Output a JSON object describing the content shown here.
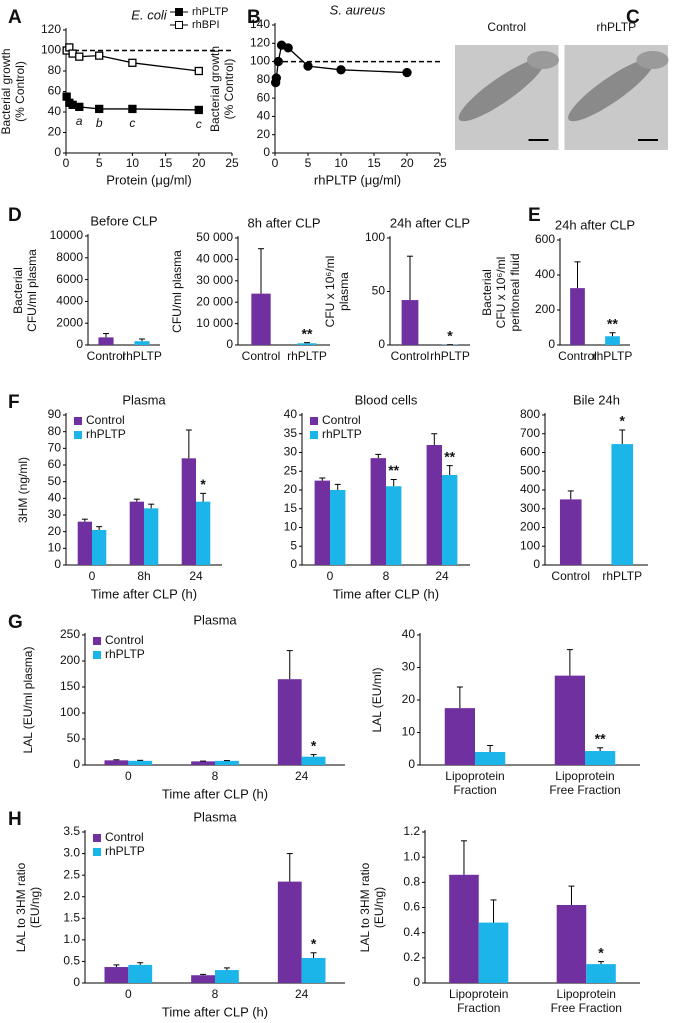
{
  "chart_data": [
    {
      "type": "line",
      "panel": "A",
      "title": "E. coli",
      "xlabel": "Protein (μg/ml)",
      "ylabel": [
        "Bacterial growth",
        "(% Control)"
      ],
      "xlim": [
        0,
        25
      ],
      "xticks": [
        0,
        5,
        10,
        15,
        20,
        25
      ],
      "ylim": [
        0,
        120
      ],
      "yticks": [
        0,
        20,
        40,
        60,
        80,
        100,
        120
      ],
      "reference_line": 100,
      "legend": "upper right",
      "series": [
        {
          "name": "rhPLTP",
          "color": "#000000",
          "marker": "filled-square",
          "x": [
            0.1,
            0.5,
            1,
            2,
            5,
            10,
            20
          ],
          "values": [
            55,
            49,
            47,
            45,
            43,
            43,
            42
          ],
          "point_labels": [
            null,
            null,
            null,
            "a",
            "b",
            "c",
            "c"
          ]
        },
        {
          "name": "rhBPI",
          "color": "#000000",
          "marker": "open-square",
          "x": [
            0.1,
            0.5,
            1,
            2,
            5,
            10,
            20
          ],
          "values": [
            100,
            103,
            97,
            94,
            95,
            88,
            80
          ]
        }
      ]
    },
    {
      "type": "line",
      "panel": "B",
      "title": "S. aureus",
      "xlabel": "rhPLTP (μg/ml)",
      "ylabel": [
        "Bacterial growth",
        "(% Control)"
      ],
      "xlim": [
        0,
        25
      ],
      "xticks": [
        0,
        5,
        10,
        15,
        20,
        25
      ],
      "ylim": [
        0,
        140
      ],
      "yticks": [
        0,
        20,
        40,
        60,
        80,
        100,
        120,
        140
      ],
      "reference_line": 100,
      "series": [
        {
          "color": "#000000",
          "marker": "filled-circle",
          "x": [
            0.1,
            0.2,
            0.5,
            1,
            2,
            5,
            10,
            20
          ],
          "values": [
            77,
            82,
            100,
            118,
            115,
            95,
            91,
            88
          ]
        }
      ]
    },
    {
      "type": "image",
      "panel": "C",
      "labels": [
        "Control",
        "rhPLTP"
      ]
    },
    {
      "type": "bar",
      "panel": "D",
      "title": "Before CLP",
      "ylabel": [
        "Bacterial",
        "CFU/ml plasma"
      ],
      "categories": [
        "Control",
        "rhPLTP"
      ],
      "values": [
        700,
        350
      ],
      "errors": [
        350,
        200
      ],
      "colors": [
        "#7030a0",
        "#1cb5ea"
      ],
      "ylim": [
        0,
        10000
      ],
      "yticks": [
        0,
        2000,
        4000,
        6000,
        8000,
        10000
      ]
    },
    {
      "type": "bar",
      "title": "8h after CLP",
      "ylabel": "CFU/ml plasma",
      "categories": [
        "Control",
        "rhPLTP"
      ],
      "values": [
        24000,
        800
      ],
      "errors": [
        21000,
        300
      ],
      "marks": [
        null,
        "**"
      ],
      "colors": [
        "#7030a0",
        "#1cb5ea"
      ],
      "ylim": [
        0,
        50000
      ],
      "yticks": [
        0,
        {
          "value": 10000,
          "label": "10 000"
        },
        {
          "value": 20000,
          "label": "20 000"
        },
        {
          "value": 30000,
          "label": "30 000"
        },
        {
          "value": 40000,
          "label": "40 000"
        },
        {
          "value": 50000,
          "label": "50 000"
        }
      ]
    },
    {
      "type": "bar",
      "title": "24h after CLP",
      "ylabel": [
        "CFU x 10⁶/ml",
        "plasma"
      ],
      "categories": [
        "Control",
        "rhPLTP"
      ],
      "values": [
        42,
        0.3
      ],
      "errors": [
        41,
        0
      ],
      "marks": [
        null,
        "*"
      ],
      "colors": [
        "#7030a0",
        "#1cb5ea"
      ],
      "ylim": [
        0,
        100
      ],
      "yticks": [
        0,
        50,
        100
      ]
    },
    {
      "type": "bar",
      "panel": "E",
      "title": "24h after CLP",
      "ylabel": [
        "Bacterial",
        "CFU x 10⁶/ml",
        "peritoneal fluid"
      ],
      "categories": [
        "Control",
        "rhPLTP"
      ],
      "values": [
        325,
        50
      ],
      "errors": [
        150,
        20
      ],
      "marks": [
        null,
        "**"
      ],
      "colors": [
        "#7030a0",
        "#1cb5ea"
      ],
      "ylim": [
        0,
        600
      ],
      "yticks": [
        0,
        200,
        400,
        600
      ]
    },
    {
      "type": "grouped-bar",
      "panel": "F",
      "title": "Plasma",
      "xlabel": "Time after CLP (h)",
      "ylabel": "3HM (ng/ml)",
      "legend": "upper left",
      "categories": [
        "0",
        "8h",
        "24"
      ],
      "ylim": [
        0,
        90
      ],
      "yticks": [
        0,
        10,
        20,
        30,
        40,
        50,
        60,
        70,
        80,
        90
      ],
      "series": [
        {
          "name": "Control",
          "color": "#7030a0",
          "values": [
            26,
            38,
            64
          ],
          "errors": [
            1.5,
            1.5,
            17
          ]
        },
        {
          "name": "rhPLTP",
          "color": "#1cb5ea",
          "values": [
            21,
            34,
            38
          ],
          "errors": [
            2,
            2.5,
            5
          ],
          "marks": [
            null,
            null,
            "*"
          ]
        }
      ]
    },
    {
      "type": "grouped-bar",
      "title": "Blood cells",
      "xlabel": "Time after CLP (h)",
      "legend": "upper left",
      "categories": [
        "0",
        "8",
        "24"
      ],
      "ylim": [
        0,
        40
      ],
      "yticks": [
        0,
        5,
        10,
        15,
        20,
        25,
        30,
        35,
        40
      ],
      "series": [
        {
          "name": "Control",
          "color": "#7030a0",
          "values": [
            22.5,
            28.5,
            32
          ],
          "errors": [
            0.7,
            1,
            3
          ]
        },
        {
          "name": "rhPLTP",
          "color": "#1cb5ea",
          "values": [
            20,
            21,
            24
          ],
          "errors": [
            1.5,
            1.8,
            2.5
          ],
          "marks": [
            null,
            "**",
            "**"
          ]
        }
      ]
    },
    {
      "type": "bar",
      "title": "Bile 24h",
      "categories": [
        "Control",
        "rhPLTP"
      ],
      "values": [
        350,
        645
      ],
      "errors": [
        45,
        75
      ],
      "marks": [
        null,
        "*"
      ],
      "colors": [
        "#7030a0",
        "#1cb5ea"
      ],
      "ylim": [
        0,
        800
      ],
      "yticks": [
        0,
        100,
        200,
        300,
        400,
        500,
        600,
        700,
        800
      ]
    },
    {
      "type": "grouped-bar",
      "panel": "G",
      "title": "Plasma",
      "xlabel": "Time after CLP (h)",
      "ylabel": "LAL (EU/ml plasma)",
      "legend": "upper left",
      "categories": [
        "0",
        "8",
        "24"
      ],
      "ylim": [
        0,
        250
      ],
      "yticks": [
        0,
        50,
        100,
        150,
        200,
        250
      ],
      "series": [
        {
          "name": "Control",
          "color": "#7030a0",
          "values": [
            9,
            7,
            165
          ],
          "errors": [
            1,
            0.5,
            55
          ]
        },
        {
          "name": "rhPLTP",
          "color": "#1cb5ea",
          "values": [
            8,
            8,
            16
          ],
          "errors": [
            1,
            0.5,
            4
          ],
          "marks": [
            null,
            null,
            "*"
          ]
        }
      ]
    },
    {
      "type": "grouped-bar",
      "ylabel": "LAL (EU/ml)",
      "categories": [
        [
          "Lipoprotein",
          "Fraction"
        ],
        [
          "Lipoprotein",
          "Free Fraction"
        ]
      ],
      "ylim": [
        0,
        40
      ],
      "yticks": [
        0,
        10,
        20,
        30,
        40
      ],
      "series": [
        {
          "color": "#7030a0",
          "values": [
            17.5,
            27.5
          ],
          "errors": [
            6.5,
            8
          ]
        },
        {
          "color": "#1cb5ea",
          "values": [
            4,
            4.3
          ],
          "errors": [
            2,
            1
          ],
          "marks": [
            null,
            "**"
          ]
        }
      ]
    },
    {
      "type": "grouped-bar",
      "panel": "H",
      "title": "Plasma",
      "xlabel": "Time after CLP (h)",
      "ylabel": [
        "LAL to 3HM ratio",
        "(EU/ng)"
      ],
      "legend": "upper left",
      "categories": [
        "0",
        "8",
        "24"
      ],
      "ylim": [
        0,
        3.5
      ],
      "yticks": [
        0,
        0.5,
        {
          "value": 1,
          "label": "1.0"
        },
        1.5,
        {
          "value": 2,
          "label": "2.0"
        },
        2.5,
        {
          "value": 3,
          "label": "3.0"
        },
        3.5
      ],
      "series": [
        {
          "name": "Control",
          "color": "#7030a0",
          "values": [
            0.37,
            0.18,
            2.35
          ],
          "errors": [
            0.05,
            0.02,
            0.65
          ]
        },
        {
          "name": "rhPLTP",
          "color": "#1cb5ea",
          "values": [
            0.42,
            0.3,
            0.58
          ],
          "errors": [
            0.05,
            0.05,
            0.12
          ],
          "marks": [
            null,
            null,
            "*"
          ]
        }
      ]
    },
    {
      "type": "grouped-bar",
      "ylabel": [
        "LAL to 3HM ratio",
        "(EU/ng)"
      ],
      "categories": [
        [
          "Lipoprotein",
          "Fraction"
        ],
        [
          "Lipoprotein",
          "Free Fraction"
        ]
      ],
      "ylim": [
        0,
        1.2
      ],
      "yticks": [
        0,
        0.2,
        0.4,
        0.6,
        0.8,
        {
          "value": 1,
          "label": "1.0"
        },
        1.2
      ],
      "series": [
        {
          "color": "#7030a0",
          "values": [
            0.86,
            0.62
          ],
          "errors": [
            0.27,
            0.15
          ]
        },
        {
          "color": "#1cb5ea",
          "values": [
            0.48,
            0.15
          ],
          "errors": [
            0.18,
            0.02
          ],
          "marks": [
            null,
            "*"
          ]
        }
      ]
    }
  ]
}
